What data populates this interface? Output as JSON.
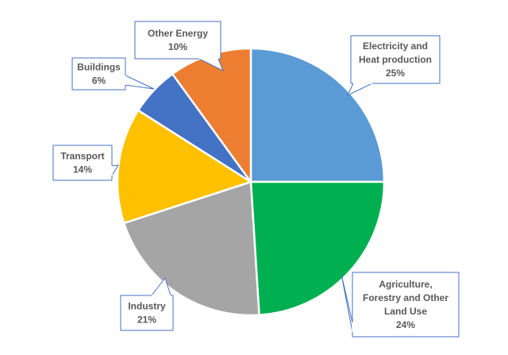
{
  "chart_data": {
    "type": "pie",
    "start_angle": "12 o'clock, clockwise",
    "slices": [
      {
        "label": "Electricity and Heat production",
        "lines": [
          "Electricity and",
          "Heat production"
        ],
        "value": 25,
        "value_label": "25%",
        "color": "#5b9bd5"
      },
      {
        "label": "Agriculture, Forestry and Other Land Use",
        "lines": [
          "Agriculture,",
          "Forestry and Other",
          "Land Use"
        ],
        "value": 24,
        "value_label": "24%",
        "color": "#00b050"
      },
      {
        "label": "Industry",
        "lines": [
          "Industry"
        ],
        "value": 21,
        "value_label": "21%",
        "color": "#a5a5a5"
      },
      {
        "label": "Transport",
        "lines": [
          "Transport"
        ],
        "value": 14,
        "value_label": "14%",
        "color": "#ffc000"
      },
      {
        "label": "Buildings",
        "lines": [
          "Buildings"
        ],
        "value": 6,
        "value_label": "6%",
        "color": "#4472c4"
      },
      {
        "label": "Other Energy",
        "lines": [
          "Other Energy"
        ],
        "value": 10,
        "value_label": "10%",
        "color": "#ed7d31"
      }
    ],
    "callout_border_color": "#4472c4"
  }
}
